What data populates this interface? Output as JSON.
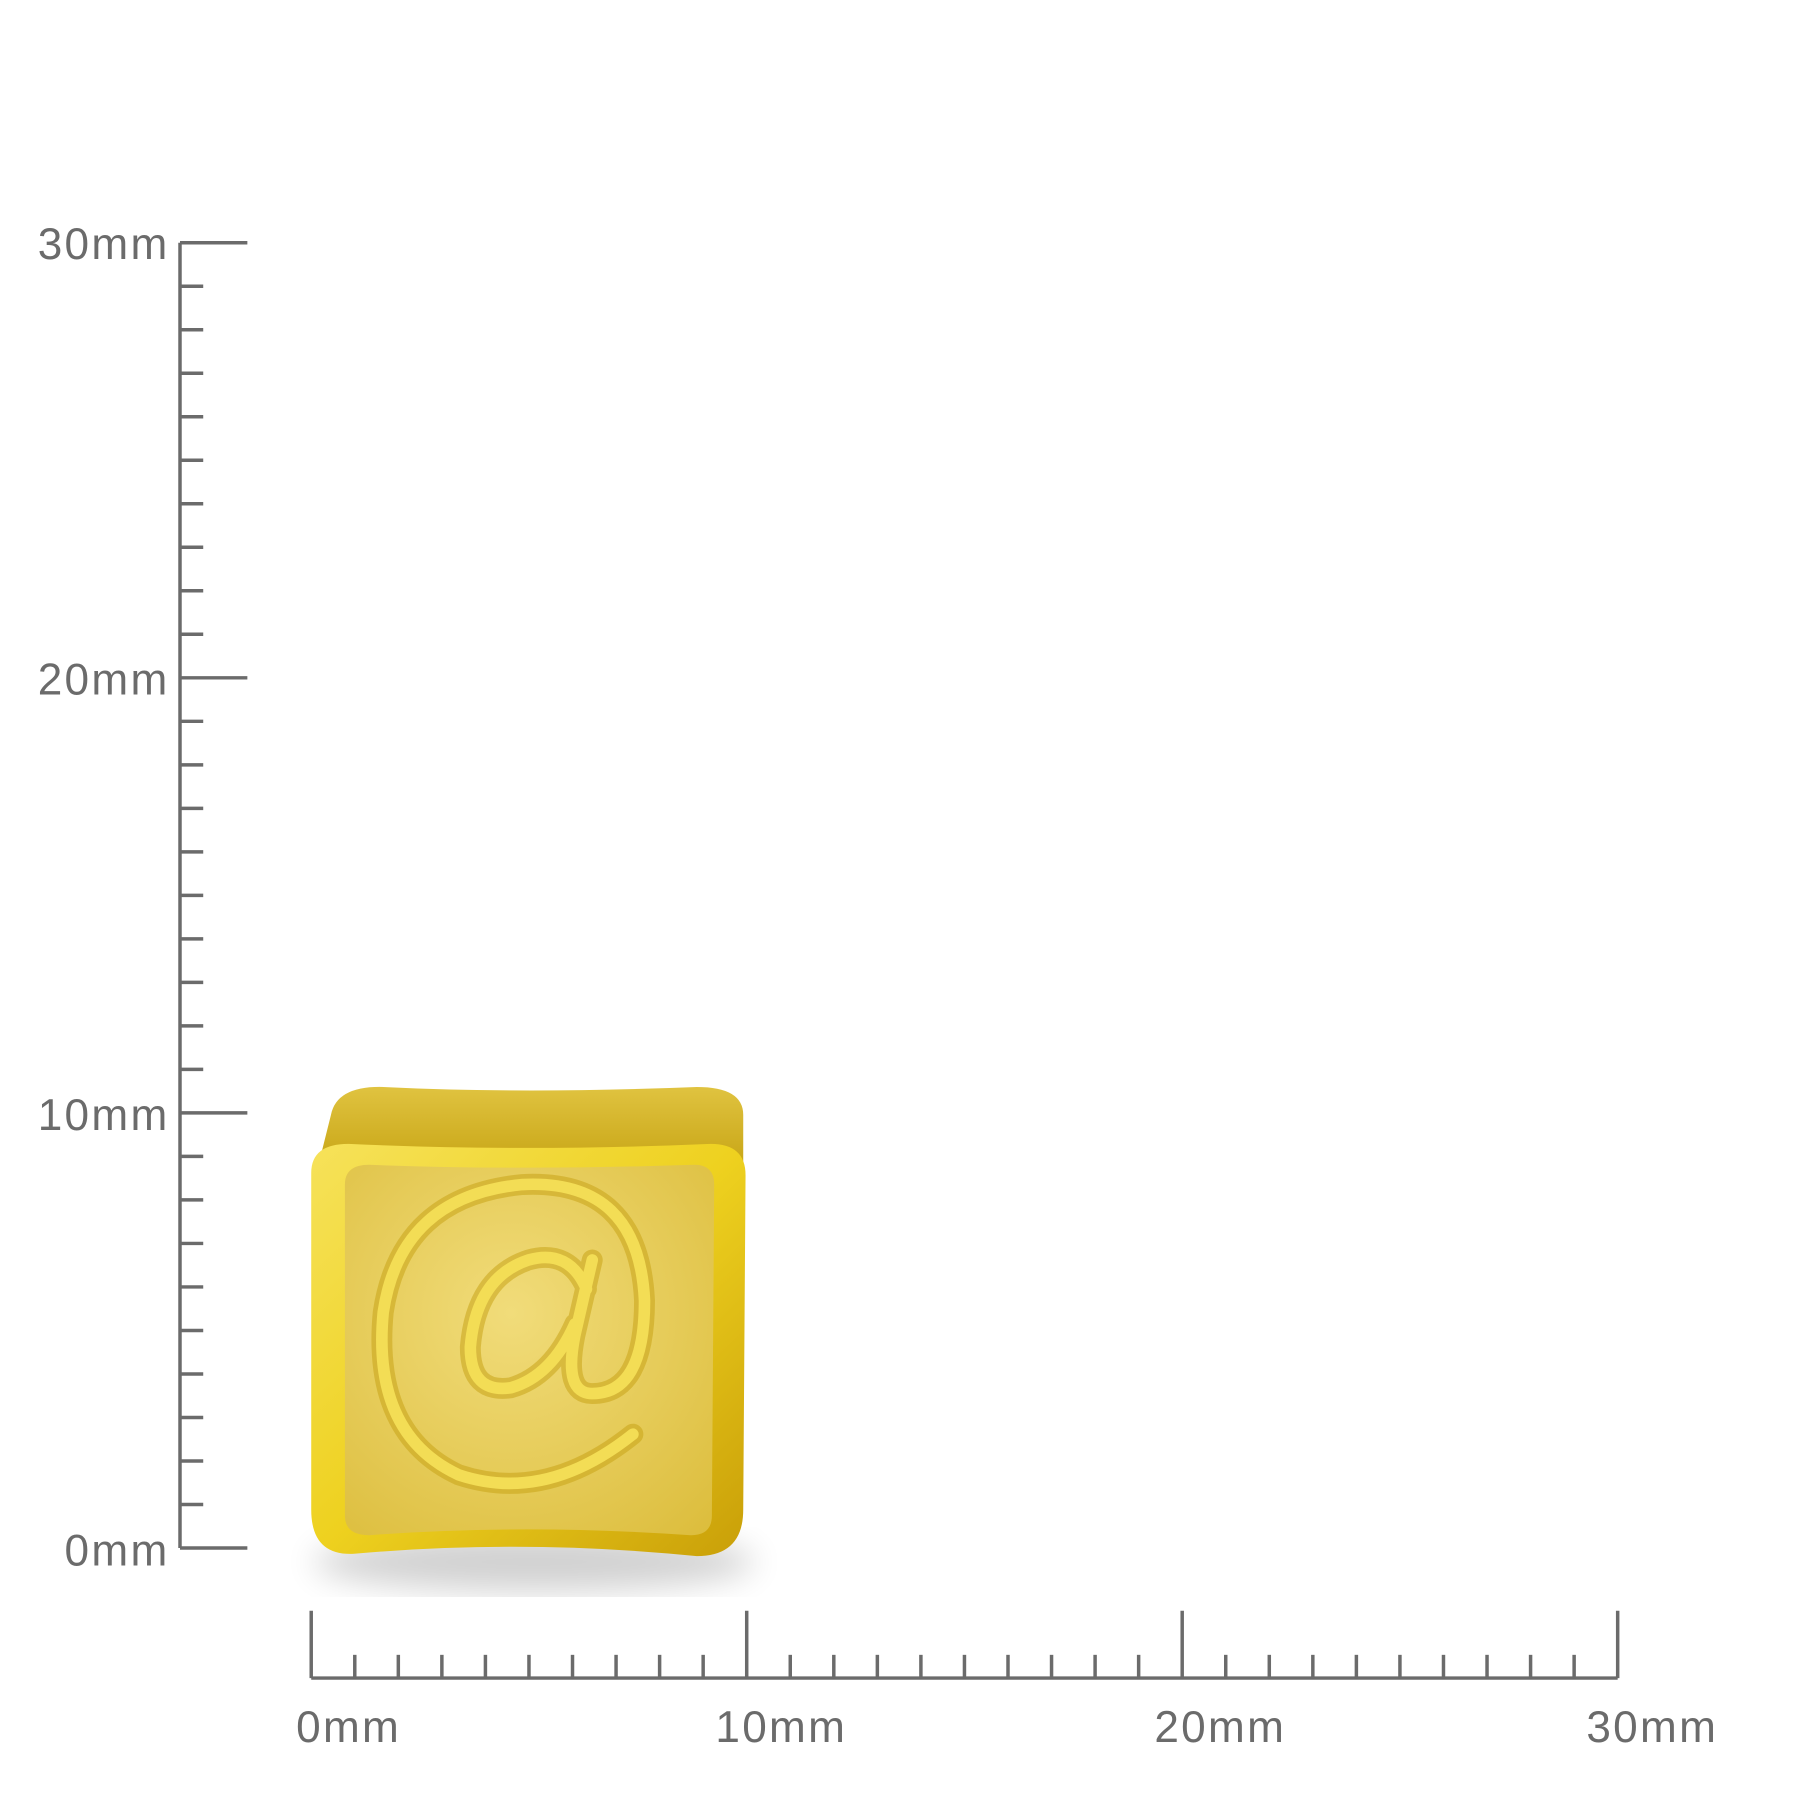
{
  "vertical_ruler": {
    "labels": [
      "0mm",
      "10mm",
      "20mm",
      "30mm"
    ],
    "range_mm": [
      0,
      30
    ],
    "minor_step_mm": 1
  },
  "horizontal_ruler": {
    "labels": [
      "0mm",
      "10mm",
      "20mm",
      "30mm"
    ],
    "range_mm": [
      0,
      30
    ],
    "minor_step_mm": 1
  },
  "product": {
    "engraved_symbol": "@",
    "color": "#e8c21a"
  },
  "colors": {
    "ruler": "#6b6b6b",
    "gold_light": "#f3dc5a",
    "gold_dark": "#c9a410"
  }
}
